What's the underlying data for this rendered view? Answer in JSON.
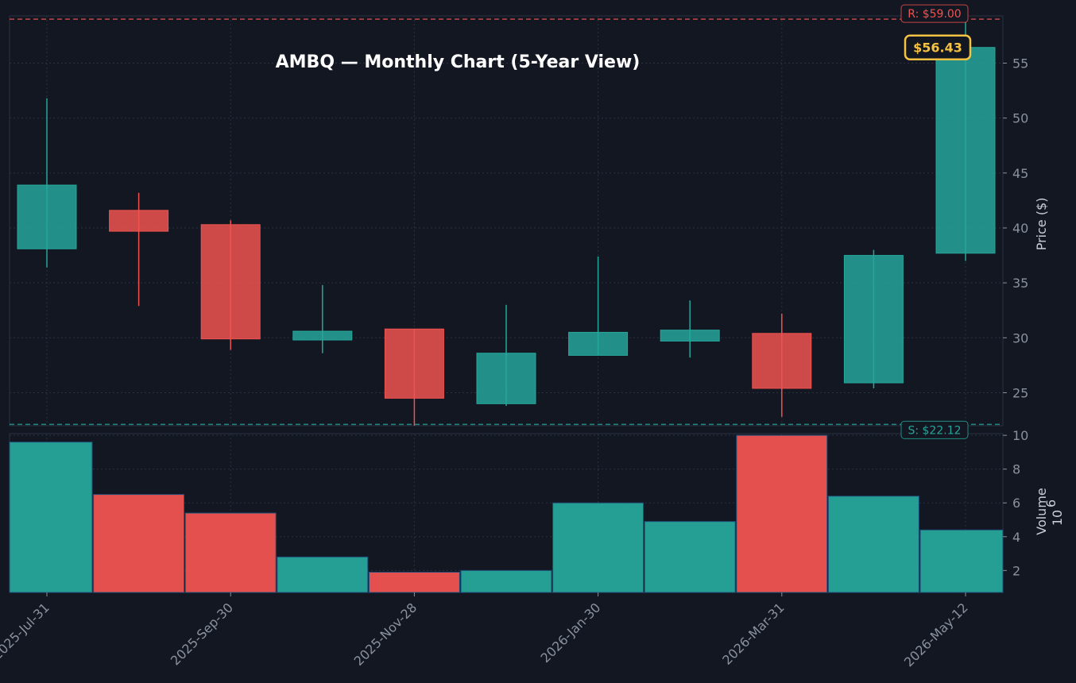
{
  "chart_data": {
    "type": "candlestick",
    "title": "AMBQ — Monthly Chart (5-Year View)",
    "ylabel": "Price ($)",
    "volume_label": "Volume",
    "volume_scale_label": "10",
    "volume_scale_exp": "6",
    "x_tick_labels": [
      "2025-Jul-31",
      "2025-Sep-30",
      "2025-Nov-28",
      "2026-Jan-30",
      "2026-Mar-31",
      "2026-May-12"
    ],
    "x_tick_index": [
      0,
      2,
      4,
      6,
      8,
      10
    ],
    "price_ylim": [
      22,
      59.3
    ],
    "price_yticks": [
      25,
      30,
      35,
      40,
      45,
      50,
      55
    ],
    "volume_ylim": [
      0.7,
      10.1
    ],
    "volume_yticks": [
      2,
      4,
      6,
      8,
      10
    ],
    "candles": [
      {
        "open": 38.1,
        "high": 51.8,
        "low": 36.4,
        "close": 43.9
      },
      {
        "open": 41.6,
        "high": 43.2,
        "low": 32.9,
        "close": 39.7
      },
      {
        "open": 40.3,
        "high": 40.7,
        "low": 28.9,
        "close": 29.9
      },
      {
        "open": 29.8,
        "high": 34.8,
        "low": 28.6,
        "close": 30.6
      },
      {
        "open": 30.8,
        "high": 30.8,
        "low": 22.0,
        "close": 24.5
      },
      {
        "open": 24.0,
        "high": 33.0,
        "low": 23.8,
        "close": 28.6
      },
      {
        "open": 28.4,
        "high": 37.4,
        "low": 28.4,
        "close": 30.5
      },
      {
        "open": 29.7,
        "high": 33.4,
        "low": 28.2,
        "close": 30.7
      },
      {
        "open": 30.4,
        "high": 32.2,
        "low": 22.8,
        "close": 25.4
      },
      {
        "open": 25.9,
        "high": 38.0,
        "low": 25.4,
        "close": 37.5
      },
      {
        "open": 37.7,
        "high": 59.0,
        "low": 37.0,
        "close": 56.43
      }
    ],
    "volumes": [
      9.6,
      6.5,
      5.4,
      2.8,
      1.9,
      2.0,
      6.0,
      4.9,
      10.0,
      6.4,
      4.4
    ],
    "resistance": {
      "value": 59.0,
      "label": "R: $59.00"
    },
    "support": {
      "value": 22.12,
      "label": "S: $22.12"
    },
    "last_price_label": "$56.43",
    "colors": {
      "background": "#131722",
      "up": "#26a69a",
      "down": "#ef5350",
      "resistance": "#ef5350",
      "support": "#26a69a",
      "last_price": "#f5c242",
      "grid": "#2a3142",
      "tick_text": "#8a919e"
    }
  }
}
